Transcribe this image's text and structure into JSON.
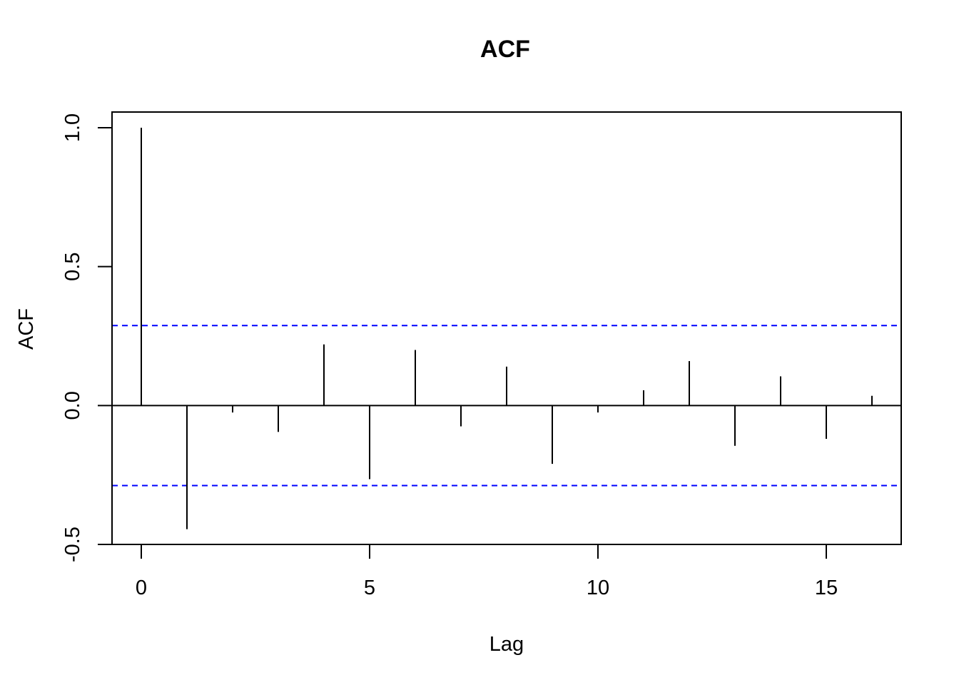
{
  "chart_data": {
    "type": "bar",
    "subtype": "acf-stem",
    "title": "ACF",
    "xlabel": "Lag",
    "ylabel": "ACF",
    "xlim": [
      -0.64,
      16.64
    ],
    "ylim": [
      -0.5,
      1.0
    ],
    "x_ticks": [
      0,
      5,
      10,
      15
    ],
    "x_tick_labels": [
      "0",
      "5",
      "10",
      "15"
    ],
    "y_ticks": [
      -0.5,
      0.0,
      0.5,
      1.0
    ],
    "y_tick_labels": [
      "-0.5",
      "0.0",
      "0.5",
      "1.0"
    ],
    "lags": [
      0,
      1,
      2,
      3,
      4,
      5,
      6,
      7,
      8,
      9,
      10,
      11,
      12,
      13,
      14,
      15,
      16
    ],
    "values": [
      1.0,
      -0.445,
      -0.025,
      -0.095,
      0.22,
      -0.265,
      0.2,
      -0.075,
      0.14,
      -0.21,
      -0.025,
      0.055,
      0.16,
      -0.145,
      0.105,
      -0.12,
      0.035
    ],
    "confidence_bound": 0.288,
    "grid": false,
    "legend": "none",
    "colors": {
      "stems": "#000000",
      "bounds": "#0000ff",
      "zero_line": "#000000"
    }
  }
}
